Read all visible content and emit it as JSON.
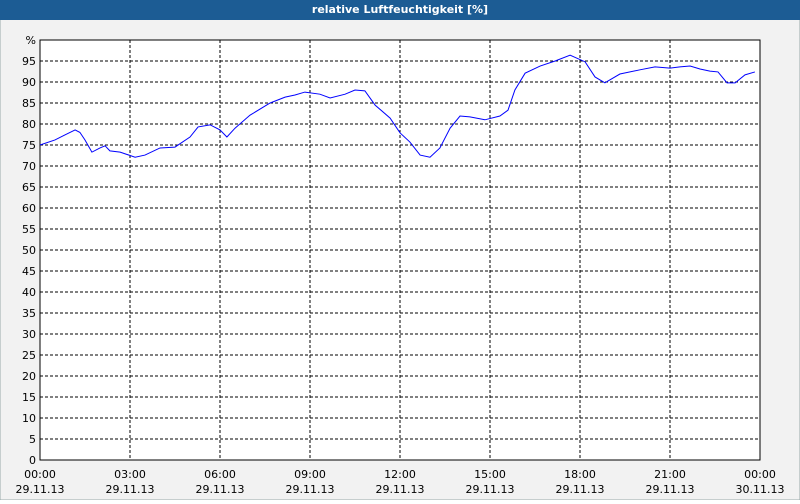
{
  "chart_data": {
    "type": "line",
    "title": "relative Luftfeuchtigkeit [%]",
    "x": [
      0,
      0.5,
      0.83,
      1.17,
      1.33,
      1.5,
      1.73,
      2,
      2.17,
      2.33,
      2.67,
      3.17,
      3.5,
      4,
      4.5,
      5,
      5.27,
      5.67,
      6,
      6.23,
      6.5,
      7,
      7.67,
      8.17,
      8.5,
      8.83,
      9.33,
      9.67,
      10.17,
      10.5,
      10.83,
      11.17,
      11.67,
      12,
      12.33,
      12.67,
      13,
      13.33,
      13.67,
      14,
      14.33,
      14.83,
      15.33,
      15.6,
      15.83,
      16.17,
      16.67,
      17.17,
      17.67,
      18.17,
      18.5,
      18.83,
      19.33,
      20,
      20.5,
      21,
      21.33,
      21.67,
      22,
      22.33,
      22.6,
      22.9,
      23.17,
      23.5,
      23.83
    ],
    "series": [
      {
        "name": "relative Luftfeuchtigkeit",
        "color": "#0000ff",
        "values": [
          75,
          76.2,
          77.4,
          78.6,
          78,
          76.2,
          73.3,
          74.3,
          74.8,
          73.6,
          73.3,
          72.1,
          72.6,
          74.3,
          74.5,
          76.9,
          79.3,
          79.8,
          78.6,
          76.9,
          79,
          82.1,
          85,
          86.4,
          86.9,
          87.6,
          87.1,
          86.2,
          87.1,
          88.1,
          87.9,
          84.5,
          81.4,
          77.9,
          75.7,
          72.6,
          72.1,
          74.3,
          79,
          81.9,
          81.7,
          81,
          81.9,
          83.3,
          88.1,
          92.1,
          93.8,
          95,
          96.4,
          94.8,
          91.2,
          89.8,
          91.9,
          92.9,
          93.6,
          93.3,
          93.6,
          93.8,
          93.1,
          92.6,
          92.4,
          89.8,
          89.8,
          91.7,
          92.4
        ]
      }
    ],
    "xlim": [
      0,
      24
    ],
    "xticks": [
      {
        "value": 0,
        "label": "00:00"
      },
      {
        "value": 3,
        "label": "03:00"
      },
      {
        "value": 6,
        "label": "06:00"
      },
      {
        "value": 9,
        "label": "09:00"
      },
      {
        "value": 12,
        "label": "12:00"
      },
      {
        "value": 15,
        "label": "15:00"
      },
      {
        "value": 18,
        "label": "18:00"
      },
      {
        "value": 21,
        "label": "21:00"
      },
      {
        "value": 24,
        "label": "00:00"
      }
    ],
    "xtick_dates": [
      "29.11.13",
      "29.11.13",
      "29.11.13",
      "29.11.13",
      "29.11.13",
      "29.11.13",
      "29.11.13",
      "29.11.13",
      "30.11.13"
    ],
    "ylim": [
      0,
      100
    ],
    "yticks": [
      0,
      5,
      10,
      15,
      20,
      25,
      30,
      35,
      40,
      45,
      50,
      55,
      60,
      65,
      70,
      75,
      80,
      85,
      90,
      95,
      {
        "value": 100,
        "label": "%"
      }
    ],
    "grid": true
  }
}
